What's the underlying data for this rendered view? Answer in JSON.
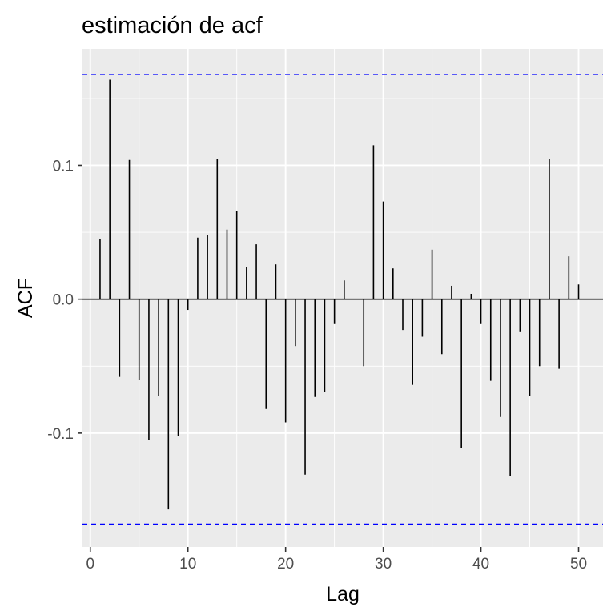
{
  "chart_data": {
    "type": "bar",
    "title": "estimación de acf",
    "xlabel": "Lag",
    "ylabel": "ACF",
    "xlim": [
      -0.8,
      52.5
    ],
    "ylim": [
      -0.185,
      0.187
    ],
    "x_ticks": [
      0,
      10,
      20,
      30,
      40,
      50
    ],
    "x_tick_labels": [
      "0",
      "10",
      "20",
      "30",
      "40",
      "50"
    ],
    "y_ticks": [
      -0.1,
      0.0,
      0.1
    ],
    "y_tick_labels": [
      "-0.1",
      "0.0",
      "0.1"
    ],
    "confidence_bound": 0.168,
    "grid": true,
    "colors": {
      "panel": "#ebebeb",
      "grid": "#ffffff",
      "bars": "#000000",
      "bound_line": "#0000ff",
      "tick_text": "#4d4d4d"
    },
    "lags": [
      1,
      2,
      3,
      4,
      5,
      6,
      7,
      8,
      9,
      10,
      11,
      12,
      13,
      14,
      15,
      16,
      17,
      18,
      19,
      20,
      21,
      22,
      23,
      24,
      25,
      26,
      27,
      28,
      29,
      30,
      31,
      32,
      33,
      34,
      35,
      36,
      37,
      38,
      39,
      40,
      41,
      42,
      43,
      44,
      45,
      46,
      47,
      48,
      49,
      50
    ],
    "values": [
      0.045,
      0.164,
      -0.058,
      0.104,
      -0.06,
      -0.105,
      -0.072,
      -0.157,
      -0.102,
      -0.008,
      0.046,
      0.048,
      0.105,
      0.052,
      0.066,
      0.024,
      0.041,
      -0.082,
      0.026,
      -0.092,
      -0.035,
      -0.131,
      -0.073,
      -0.069,
      -0.018,
      0.014,
      0.0,
      -0.05,
      0.115,
      0.073,
      0.023,
      -0.023,
      -0.064,
      -0.028,
      0.037,
      -0.041,
      0.01,
      -0.111,
      0.004,
      -0.018,
      -0.061,
      -0.088,
      -0.132,
      -0.024,
      -0.072,
      -0.05,
      0.105,
      -0.052,
      0.032,
      0.011
    ]
  }
}
